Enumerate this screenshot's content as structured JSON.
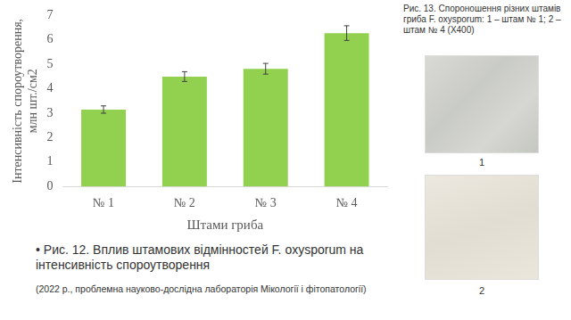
{
  "chart_data": {
    "type": "bar",
    "categories": [
      "№ 1",
      "№ 2",
      "№ 3",
      "№ 4"
    ],
    "values": [
      3.15,
      4.5,
      4.82,
      6.28
    ],
    "errors": [
      0.15,
      0.2,
      0.22,
      0.3
    ],
    "color": "#92d050",
    "x_label": "Штами гриба",
    "y_label": "Інтенсивність спороутворення, млн шт./см2",
    "ylim": [
      0,
      7
    ],
    "yticks": [
      0,
      1,
      2,
      3,
      4,
      5,
      6,
      7
    ],
    "grid": false
  },
  "figure_caption": "• Рис. 12. Вплив штамових відмінностей F. oxysporum на інтенсивність спороутворення",
  "figure_source": "(2022 р., проблемна науково-дослідна лабораторія Мікології і фітопатології)",
  "photos": {
    "caption": "Рис. 13. Спороношення різних штамів гриба F. oxysporum: 1 – штам № 1; 2 – штам № 4 (Х400)",
    "labels": [
      "1",
      "2"
    ]
  }
}
